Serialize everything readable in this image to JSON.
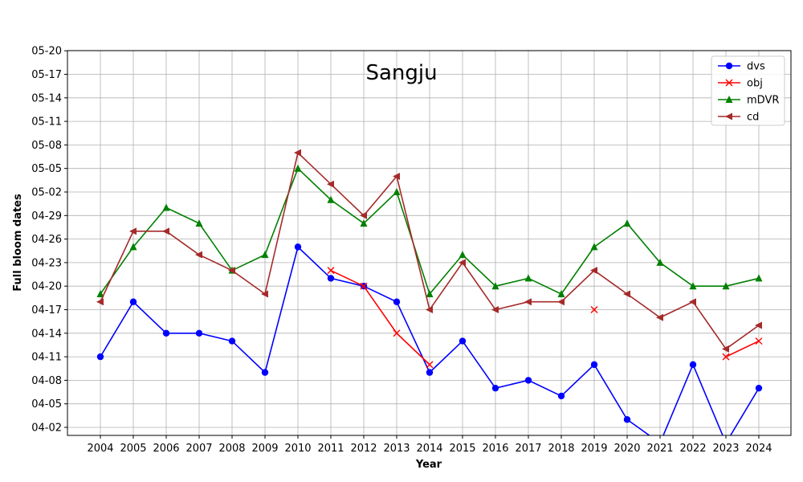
{
  "chart_data": {
    "type": "line",
    "title": "Sangju",
    "xlabel": "Year",
    "ylabel": "Full bloom dates",
    "x": [
      2004,
      2005,
      2006,
      2007,
      2008,
      2009,
      2010,
      2011,
      2012,
      2013,
      2014,
      2015,
      2016,
      2017,
      2018,
      2019,
      2020,
      2021,
      2022,
      2023,
      2024
    ],
    "y_ticks": [
      "04-02",
      "04-05",
      "04-08",
      "04-11",
      "04-14",
      "04-17",
      "04-20",
      "04-23",
      "04-26",
      "04-29",
      "05-02",
      "05-05",
      "05-08",
      "05-11",
      "05-14",
      "05-17",
      "05-20"
    ],
    "ylim": [
      "03-31",
      "05-20"
    ],
    "grid": true,
    "legend_position": "top-right",
    "series": [
      {
        "name": "dvs",
        "color": "#0000ff",
        "marker": "circle",
        "values": [
          "04-11",
          "04-18",
          "04-14",
          "04-14",
          "04-13",
          "04-09",
          "04-25",
          "04-21",
          "04-20",
          "04-18",
          "04-09",
          "04-13",
          "04-07",
          "04-08",
          "04-06",
          "04-10",
          "04-03",
          "03-31",
          "04-10",
          "03-31",
          "04-07"
        ]
      },
      {
        "name": "obj",
        "color": "#ff0000",
        "marker": "x",
        "values": [
          null,
          null,
          null,
          null,
          null,
          null,
          null,
          "04-22",
          "04-20",
          "04-14",
          "04-10",
          null,
          null,
          null,
          null,
          "04-17",
          null,
          null,
          null,
          "04-11",
          "04-13"
        ]
      },
      {
        "name": "mDVR",
        "color": "#008000",
        "marker": "triangle-up",
        "values": [
          "04-19",
          "04-25",
          "04-30",
          "04-28",
          "04-22",
          "04-24",
          "05-05",
          "05-01",
          "04-28",
          "05-02",
          "04-19",
          "04-24",
          "04-20",
          "04-21",
          "04-19",
          "04-25",
          "04-28",
          "04-23",
          "04-20",
          "04-20",
          "04-21"
        ]
      },
      {
        "name": "cd",
        "color": "#a52a2a",
        "marker": "triangle-left",
        "values": [
          "04-18",
          "04-27",
          "04-27",
          "04-24",
          "04-22",
          "04-19",
          "05-07",
          "05-03",
          "04-29",
          "05-04",
          "04-17",
          "04-23",
          "04-17",
          "04-18",
          "04-18",
          "04-22",
          "04-19",
          "04-16",
          "04-18",
          "04-12",
          "04-15"
        ]
      }
    ]
  }
}
